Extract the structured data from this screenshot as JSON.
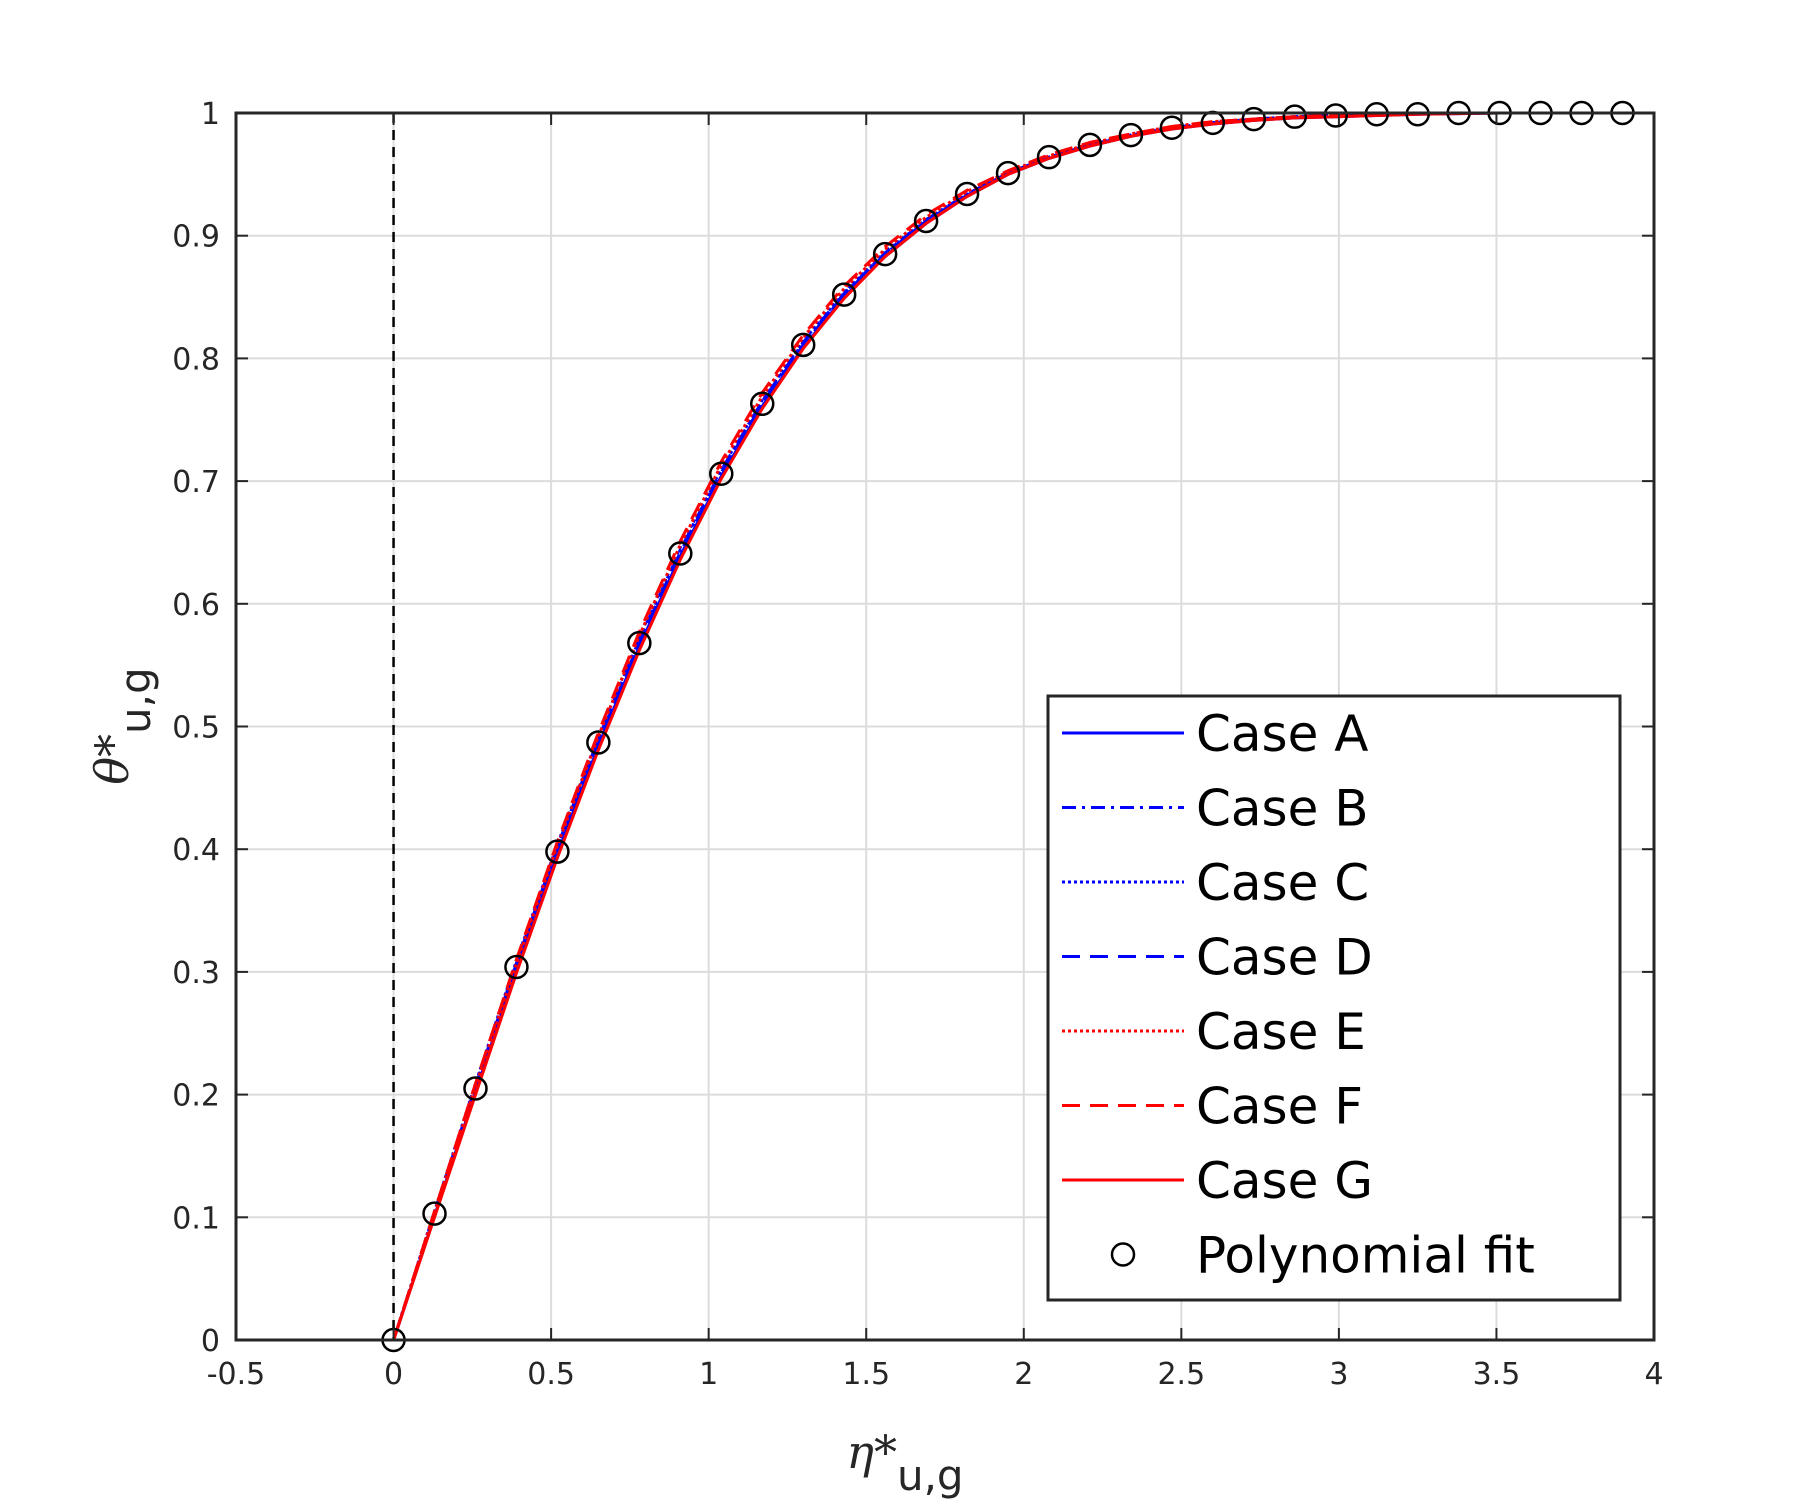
{
  "chart_data": {
    "type": "line",
    "xlabel": "η*",
    "xlabel_sub": "u,g",
    "ylabel": "θ*",
    "ylabel_sub": "u,g",
    "xlim": [
      -0.5,
      4
    ],
    "ylim": [
      0,
      1
    ],
    "xticks": [
      "-0.5",
      "0",
      "0.5",
      "1",
      "1.5",
      "2",
      "2.5",
      "3",
      "3.5",
      "4"
    ],
    "yticks": [
      "0",
      "0.1",
      "0.2",
      "0.3",
      "0.4",
      "0.5",
      "0.6",
      "0.7",
      "0.8",
      "0.9",
      "1"
    ],
    "grid": true,
    "legend_position": "bottom-right",
    "reference_line": {
      "x": 0,
      "style": "dashed",
      "color": "#000000"
    },
    "curve_x": [
      -0.07,
      0,
      0.13,
      0.26,
      0.39,
      0.52,
      0.65,
      0.78,
      0.91,
      1.04,
      1.17,
      1.3,
      1.43,
      1.56,
      1.69,
      1.82,
      1.95,
      2.08,
      2.21,
      2.34,
      2.47,
      2.6,
      2.73,
      2.86,
      2.99,
      3.12,
      3.25,
      3.38,
      3.51,
      3.64,
      3.77,
      3.9,
      4.0
    ],
    "series": [
      {
        "name": "Case A",
        "color": "#0000ff",
        "dash": "",
        "width": 3,
        "y": [
          0,
          0,
          0.101,
          0.202,
          0.302,
          0.396,
          0.484,
          0.565,
          0.639,
          0.704,
          0.761,
          0.809,
          0.85,
          0.883,
          0.91,
          0.932,
          0.95,
          0.963,
          0.973,
          0.981,
          0.987,
          0.991,
          0.994,
          0.996,
          0.997,
          0.998,
          0.999,
          0.9995,
          1,
          1,
          1,
          1,
          1
        ]
      },
      {
        "name": "Case B",
        "color": "#0000ff",
        "dash": "14 6 3 6",
        "width": 3,
        "y": [
          0,
          0,
          0.104,
          0.207,
          0.307,
          0.402,
          0.49,
          0.571,
          0.644,
          0.709,
          0.765,
          0.813,
          0.853,
          0.886,
          0.913,
          0.934,
          0.951,
          0.964,
          0.974,
          0.982,
          0.988,
          0.992,
          0.995,
          0.997,
          0.998,
          0.999,
          0.9995,
          1,
          1,
          1,
          1,
          1,
          1
        ]
      },
      {
        "name": "Case C",
        "color": "#0000ff",
        "dash": "3 3",
        "width": 3,
        "y": [
          0,
          0,
          0.105,
          0.209,
          0.309,
          0.404,
          0.492,
          0.573,
          0.646,
          0.71,
          0.766,
          0.814,
          0.854,
          0.887,
          0.913,
          0.934,
          0.951,
          0.964,
          0.974,
          0.982,
          0.988,
          0.992,
          0.995,
          0.997,
          0.998,
          0.999,
          0.9995,
          1,
          1,
          1,
          1,
          1,
          1
        ]
      },
      {
        "name": "Case D",
        "color": "#0000ff",
        "dash": "18 10",
        "width": 3,
        "y": [
          0,
          0,
          0.103,
          0.205,
          0.305,
          0.4,
          0.488,
          0.569,
          0.642,
          0.707,
          0.763,
          0.811,
          0.852,
          0.885,
          0.912,
          0.933,
          0.951,
          0.964,
          0.974,
          0.982,
          0.988,
          0.992,
          0.995,
          0.997,
          0.998,
          0.999,
          0.9995,
          1,
          1,
          1,
          1,
          1,
          1
        ]
      },
      {
        "name": "Case E",
        "color": "#ff0000",
        "dash": "3 3",
        "width": 3,
        "y": [
          0,
          0,
          0.104,
          0.207,
          0.307,
          0.403,
          0.492,
          0.574,
          0.648,
          0.713,
          0.769,
          0.817,
          0.857,
          0.889,
          0.915,
          0.936,
          0.952,
          0.965,
          0.975,
          0.983,
          0.989,
          0.993,
          0.995,
          0.997,
          0.998,
          0.999,
          0.9995,
          1,
          1,
          1,
          1,
          1,
          1
        ]
      },
      {
        "name": "Case F",
        "color": "#ff0000",
        "dash": "18 10",
        "width": 3,
        "y": [
          0,
          0,
          0.105,
          0.209,
          0.31,
          0.406,
          0.495,
          0.577,
          0.651,
          0.716,
          0.772,
          0.819,
          0.859,
          0.891,
          0.917,
          0.937,
          0.953,
          0.966,
          0.976,
          0.983,
          0.989,
          0.993,
          0.995,
          0.997,
          0.998,
          0.999,
          0.9995,
          1,
          1,
          1,
          1,
          1,
          1
        ]
      },
      {
        "name": "Case G",
        "color": "#ff0000",
        "dash": "",
        "width": 3,
        "y": [
          0,
          0,
          0.1,
          0.2,
          0.299,
          0.393,
          0.481,
          0.562,
          0.636,
          0.702,
          0.759,
          0.808,
          0.849,
          0.883,
          0.91,
          0.932,
          0.95,
          0.963,
          0.973,
          0.981,
          0.987,
          0.991,
          0.994,
          0.996,
          0.997,
          0.998,
          0.999,
          0.9995,
          1,
          1,
          1,
          1,
          1
        ]
      }
    ],
    "markers": {
      "name": "Polynomial fit",
      "color": "#000000",
      "x": [
        0,
        0.13,
        0.26,
        0.39,
        0.52,
        0.65,
        0.78,
        0.91,
        1.04,
        1.17,
        1.3,
        1.43,
        1.56,
        1.69,
        1.82,
        1.95,
        2.08,
        2.21,
        2.34,
        2.47,
        2.6,
        2.73,
        2.86,
        2.99,
        3.12,
        3.25,
        3.38,
        3.51,
        3.64,
        3.77,
        3.9
      ],
      "y": [
        0,
        0.103,
        0.205,
        0.304,
        0.398,
        0.487,
        0.568,
        0.641,
        0.706,
        0.763,
        0.811,
        0.852,
        0.885,
        0.912,
        0.934,
        0.951,
        0.964,
        0.974,
        0.982,
        0.988,
        0.992,
        0.995,
        0.997,
        0.998,
        0.999,
        0.999,
        1,
        1,
        1,
        1,
        1
      ]
    }
  }
}
